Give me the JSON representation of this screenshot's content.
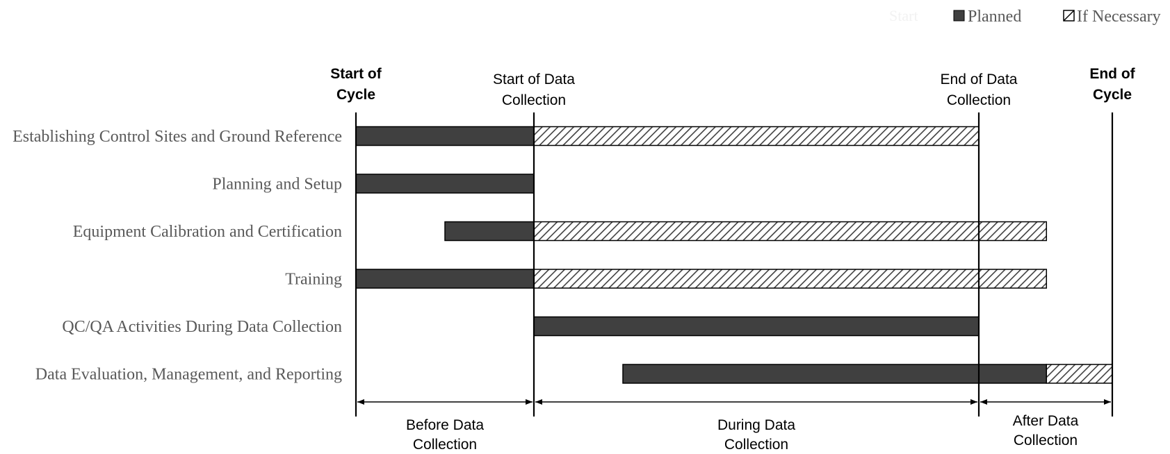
{
  "legend": {
    "start_label": "Start",
    "planned_label": "Planned",
    "if_necessary_label": "If Necessary"
  },
  "colors": {
    "planned": "#404040",
    "hatch": "#404040",
    "text_gray": "#595959",
    "line": "#000000"
  },
  "chart_data": {
    "type": "gantt",
    "milestones": [
      {
        "lines": [
          "Start of",
          "Cycle"
        ],
        "bold": true,
        "t": 0
      },
      {
        "lines": [
          "Start of Data",
          "Collection"
        ],
        "bold": false,
        "t": 1
      },
      {
        "lines": [
          "End of Data",
          "Collection"
        ],
        "bold": false,
        "t": 3.5
      },
      {
        "lines": [
          "End of",
          "Cycle"
        ],
        "bold": true,
        "t": 4.25
      }
    ],
    "tasks": [
      {
        "name": "Establishing Control Sites and Ground Reference",
        "planned": [
          0,
          1
        ],
        "if_necessary": [
          1,
          3.5
        ]
      },
      {
        "name": "Planning and Setup",
        "planned": [
          0,
          1
        ],
        "if_necessary": null
      },
      {
        "name": "Equipment Calibration and Certification",
        "planned": [
          0.5,
          1
        ],
        "if_necessary": [
          1,
          3.88
        ]
      },
      {
        "name": "Training",
        "planned": [
          0,
          1
        ],
        "if_necessary": [
          1,
          3.88
        ]
      },
      {
        "name": "QC/QA Activities During Data Collection",
        "planned": [
          1,
          3.5
        ],
        "if_necessary": null
      },
      {
        "name": "Data Evaluation, Management, and Reporting",
        "planned": [
          1.5,
          3.88
        ],
        "if_necessary": [
          3.88,
          4.25
        ]
      }
    ],
    "phases": [
      {
        "lines": [
          "Before Data",
          "Collection"
        ],
        "range": [
          0,
          1
        ]
      },
      {
        "lines": [
          "During Data",
          "Collection"
        ],
        "range": [
          1,
          3.5
        ]
      },
      {
        "lines": [
          "After Data",
          "Collection"
        ],
        "range": [
          3.5,
          4.25
        ]
      }
    ]
  }
}
